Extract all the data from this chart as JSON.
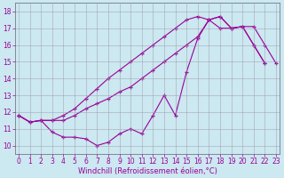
{
  "xlabel": "Windchill (Refroidissement éolien,°C)",
  "bg_color": "#cce8f0",
  "line_color": "#990099",
  "grid_color": "#9999aa",
  "xlim": [
    -0.5,
    23.5
  ],
  "ylim": [
    9.5,
    18.5
  ],
  "yticks": [
    10,
    11,
    12,
    13,
    14,
    15,
    16,
    17,
    18
  ],
  "xticks": [
    0,
    1,
    2,
    3,
    4,
    5,
    6,
    7,
    8,
    9,
    10,
    11,
    12,
    13,
    14,
    15,
    16,
    17,
    18,
    19,
    20,
    21,
    22,
    23
  ],
  "series": [
    [
      11.8,
      11.4,
      11.5,
      10.8,
      10.5,
      10.5,
      10.4,
      10.0,
      10.2,
      10.7,
      11.0,
      10.7,
      11.8,
      13.0,
      11.8,
      14.4,
      16.4,
      17.5,
      17.7,
      17.0,
      17.1,
      17.1,
      16.0,
      14.9
    ],
    [
      11.8,
      11.4,
      11.5,
      11.5,
      11.5,
      11.8,
      12.2,
      12.5,
      12.8,
      13.2,
      13.5,
      14.0,
      14.5,
      15.0,
      15.5,
      16.0,
      16.5,
      17.5,
      17.7,
      17.0,
      17.1,
      16.0,
      14.9,
      null
    ],
    [
      11.8,
      11.4,
      11.5,
      11.5,
      11.8,
      12.2,
      12.8,
      13.4,
      14.0,
      14.5,
      15.0,
      15.5,
      16.0,
      16.5,
      17.0,
      17.5,
      17.7,
      17.5,
      17.0,
      17.0,
      17.1,
      16.0,
      14.9,
      null
    ]
  ],
  "xlabel_fontsize": 6,
  "tick_labelsize": 5.5
}
